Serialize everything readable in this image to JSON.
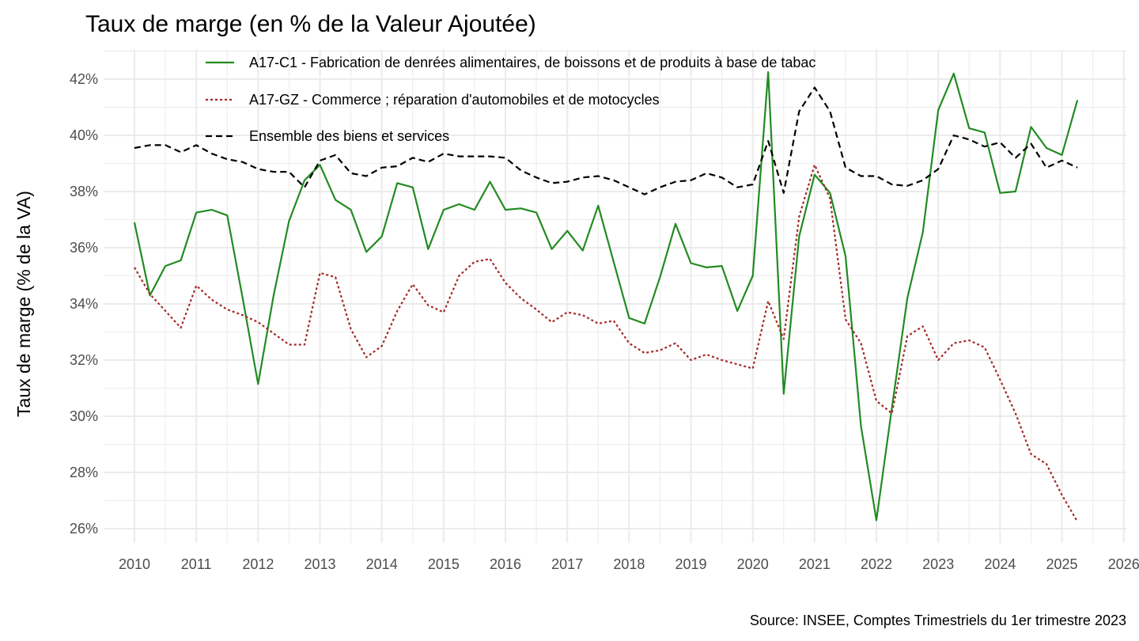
{
  "chart_data": {
    "type": "line",
    "title": "Taux de marge (en % de la Valeur Ajoutée)",
    "xlabel": "",
    "ylabel": "Taux de marge (% de la VA)",
    "caption": "Source: INSEE, Comptes Trimestriels du 1er trimestre 2023",
    "xlim": [
      2010,
      2026
    ],
    "ylim": [
      25.7,
      43
    ],
    "x_ticks": [
      "2010",
      "2011",
      "2012",
      "2013",
      "2014",
      "2015",
      "2016",
      "2017",
      "2018",
      "2019",
      "2020",
      "2021",
      "2022",
      "2023",
      "2024",
      "2025",
      "2026"
    ],
    "y_ticks": [
      {
        "value": 26,
        "label": "26%"
      },
      {
        "value": 28,
        "label": "28%"
      },
      {
        "value": 30,
        "label": "30%"
      },
      {
        "value": 32,
        "label": "32%"
      },
      {
        "value": 34,
        "label": "34%"
      },
      {
        "value": 36,
        "label": "36%"
      },
      {
        "value": 38,
        "label": "38%"
      },
      {
        "value": 40,
        "label": "40%"
      },
      {
        "value": 42,
        "label": "42%"
      }
    ],
    "grid": true,
    "legend_position": "top-left inside",
    "x_start": 2010.0,
    "x_step": 0.25,
    "series": [
      {
        "name": "A17-C1 - Fabrication de denrées alimentaires, de boissons et de produits à base de tabac",
        "color": "#228b22",
        "dash": "solid",
        "values": [
          36.9,
          34.3,
          35.35,
          35.55,
          37.25,
          37.35,
          37.15,
          34.2,
          31.15,
          34.3,
          36.95,
          38.4,
          38.95,
          37.7,
          37.35,
          35.85,
          36.4,
          38.3,
          38.15,
          35.95,
          37.35,
          37.55,
          37.35,
          38.35,
          37.35,
          37.4,
          37.25,
          35.95,
          36.6,
          35.9,
          37.5,
          35.5,
          33.5,
          33.3,
          34.95,
          36.85,
          35.45,
          35.3,
          35.35,
          33.75,
          35.0,
          42.25,
          30.8,
          36.4,
          38.6,
          37.95,
          35.7,
          29.65,
          26.3,
          30.3,
          34.2,
          36.55,
          40.9,
          42.2,
          40.25,
          40.1,
          37.95,
          38.0,
          40.3,
          39.55,
          39.3,
          41.25
        ]
      },
      {
        "name": "A17-GZ - Commerce ; réparation d'automobiles et de motocycles",
        "color": "#a52a2a",
        "dash": "dotted",
        "values": [
          35.3,
          34.35,
          33.75,
          33.15,
          34.65,
          34.15,
          33.8,
          33.6,
          33.35,
          32.95,
          32.55,
          32.55,
          35.1,
          34.95,
          33.1,
          32.1,
          32.5,
          33.75,
          34.7,
          33.95,
          33.7,
          35.0,
          35.5,
          35.6,
          34.75,
          34.2,
          33.8,
          33.35,
          33.7,
          33.6,
          33.3,
          33.4,
          32.6,
          32.25,
          32.35,
          32.6,
          32.0,
          32.2,
          32.0,
          31.85,
          31.7,
          34.1,
          32.75,
          37.1,
          38.95,
          37.75,
          33.45,
          32.6,
          30.55,
          30.1,
          32.85,
          33.2,
          32.0,
          32.6,
          32.7,
          32.45,
          31.3,
          30.1,
          28.65,
          28.3,
          27.2,
          26.25
        ]
      },
      {
        "name": "Ensemble des biens et services",
        "color": "#000000",
        "dash": "dashed",
        "values": [
          39.55,
          39.65,
          39.65,
          39.4,
          39.65,
          39.35,
          39.15,
          39.05,
          38.8,
          38.7,
          38.7,
          38.15,
          39.1,
          39.3,
          38.65,
          38.55,
          38.85,
          38.9,
          39.2,
          39.05,
          39.35,
          39.25,
          39.25,
          39.25,
          39.2,
          38.75,
          38.5,
          38.3,
          38.35,
          38.5,
          38.55,
          38.4,
          38.15,
          37.9,
          38.15,
          38.35,
          38.4,
          38.65,
          38.5,
          38.15,
          38.25,
          39.8,
          37.95,
          40.85,
          41.7,
          40.85,
          38.85,
          38.55,
          38.55,
          38.25,
          38.2,
          38.4,
          38.8,
          40.0,
          39.85,
          39.6,
          39.75,
          39.2,
          39.7,
          38.85,
          39.1,
          38.85
        ]
      }
    ]
  }
}
